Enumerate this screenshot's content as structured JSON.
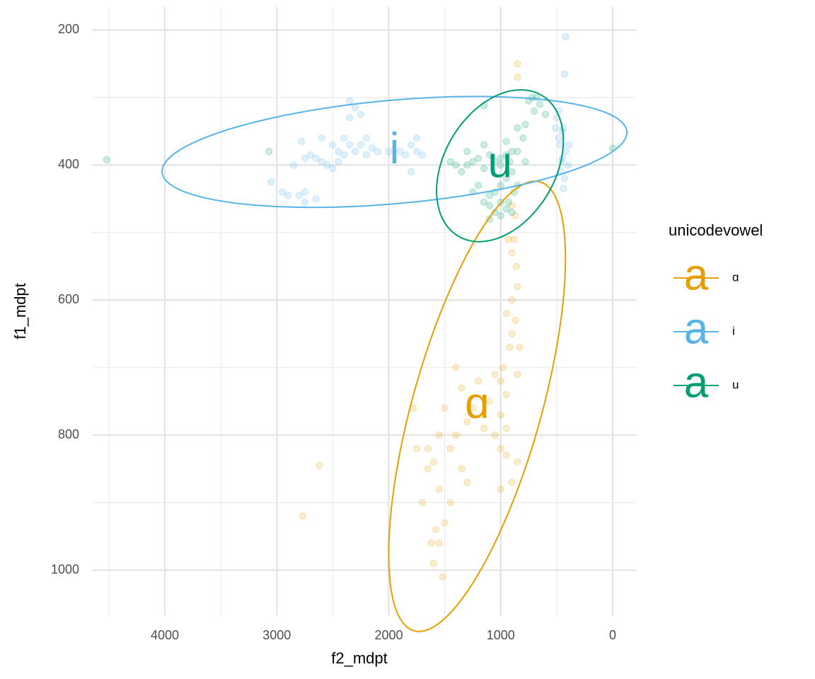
{
  "chart_data": {
    "type": "scatter",
    "x_label": "f2_mdpt",
    "y_label": "f1_mdpt",
    "xlim": [
      -215,
      4651
    ],
    "xreverse": true,
    "xticks": [
      0,
      1000,
      2000,
      3000,
      4000
    ],
    "xminorticks": [
      500,
      1500,
      2500,
      3500,
      4500
    ],
    "ylim": [
      166,
      1067
    ],
    "yreverse": true,
    "yticks": [
      200,
      400,
      600,
      800,
      1000
    ],
    "yminorticks": [
      300,
      500,
      700,
      900
    ],
    "grid": true,
    "legend_title": "unicodevowel",
    "legend_position": "right",
    "legend_key_glyph": "a",
    "ellipses": true,
    "point_alpha": 0.2,
    "series": [
      {
        "name": "ɑ",
        "color": "#E69F00",
        "x": [
          850,
          850,
          870,
          900,
          930,
          880,
          900,
          860,
          850,
          900,
          950,
          870,
          900,
          920,
          830,
          850,
          980,
          1000,
          950,
          1050,
          1000,
          1100,
          1050,
          950,
          1000,
          1250,
          1300,
          1350,
          1400,
          1450,
          1350,
          1300,
          1500,
          1550,
          1600,
          1450,
          1500,
          1550,
          1600,
          1520,
          1650,
          1650,
          1700,
          1780,
          1750,
          1550,
          1400,
          900,
          850,
          950,
          2620,
          2770,
          1580,
          1620,
          1200,
          1150,
          1000
        ],
        "y": [
          250,
          270,
          475,
          460,
          510,
          510,
          530,
          550,
          580,
          600,
          620,
          630,
          650,
          670,
          670,
          710,
          700,
          720,
          740,
          710,
          770,
          750,
          800,
          790,
          820,
          760,
          780,
          730,
          800,
          820,
          850,
          870,
          760,
          800,
          840,
          900,
          930,
          960,
          990,
          1010,
          820,
          850,
          900,
          760,
          820,
          880,
          700,
          870,
          840,
          830,
          845,
          920,
          940,
          960,
          720,
          790,
          880
        ]
      },
      {
        "name": "i",
        "color": "#56B4E9",
        "x": [
          2350,
          2300,
          2350,
          2250,
          2600,
          2500,
          2450,
          2400,
          2350,
          2300,
          2250,
          2200,
          2150,
          2100,
          2700,
          2650,
          2550,
          2500,
          2450,
          2750,
          2600,
          2400,
          2200,
          2750,
          2800,
          2900,
          2950,
          2750,
          2650,
          3050,
          2850,
          2780,
          1750,
          1800,
          1850,
          1900,
          1800,
          1750,
          2000,
          420,
          430,
          480,
          500,
          450,
          470,
          420,
          450,
          400,
          460,
          430,
          440,
          480,
          510,
          440,
          390,
          460,
          1700
        ],
        "y": [
          305,
          315,
          330,
          325,
          360,
          370,
          380,
          385,
          370,
          380,
          370,
          385,
          375,
          380,
          385,
          390,
          400,
          405,
          395,
          390,
          395,
          360,
          360,
          440,
          445,
          445,
          440,
          455,
          450,
          425,
          400,
          365,
          360,
          370,
          385,
          380,
          410,
          380,
          380,
          210,
          265,
          320,
          330,
          350,
          370,
          380,
          390,
          400,
          410,
          420,
          435,
          360,
          345,
          345,
          370,
          395,
          385
        ]
      },
      {
        "name": "u",
        "color": "#009E73",
        "x": [
          4520,
          3070,
          0,
          1150,
          720,
          680,
          750,
          650,
          700,
          600,
          780,
          850,
          900,
          950,
          1000,
          920,
          1050,
          1100,
          1200,
          1250,
          1300,
          1150,
          1400,
          1450,
          1350,
          900,
          950,
          1000,
          1050,
          1100,
          1150,
          1000,
          950,
          900,
          1050,
          1100,
          850,
          880,
          930,
          1200,
          1250,
          1100,
          1000,
          800,
          850,
          780,
          1150,
          1300,
          1000,
          950
        ],
        "y": [
          392,
          380,
          375,
          312,
          300,
          300,
          305,
          310,
          320,
          325,
          340,
          345,
          380,
          385,
          390,
          395,
          395,
          385,
          390,
          395,
          400,
          405,
          400,
          395,
          410,
          410,
          420,
          430,
          440,
          445,
          455,
          455,
          465,
          470,
          470,
          460,
          430,
          440,
          455,
          430,
          440,
          480,
          475,
          360,
          380,
          395,
          370,
          380,
          400,
          365
        ]
      }
    ]
  }
}
